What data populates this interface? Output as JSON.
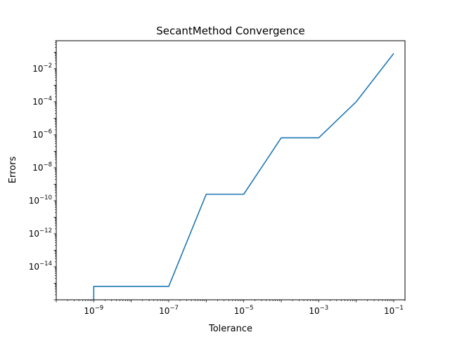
{
  "chart_data": {
    "type": "line",
    "title": "SecantMethod Convergence",
    "xlabel": "Tolerance",
    "ylabel": "Errors",
    "xscale": "log",
    "yscale": "log",
    "xlim": [
      1e-10,
      0.2
    ],
    "ylim": [
      1e-16,
      0.5
    ],
    "grid": false,
    "legend": "none",
    "series": [
      {
        "color": "#1f77b4",
        "x": [
          1e-09,
          1e-09,
          1e-08,
          1e-07,
          1e-06,
          1e-05,
          0.0001,
          0.001,
          0.01,
          0.1
        ],
        "y": [
          1e-16,
          6.5e-16,
          6.5e-16,
          6.5e-16,
          2.5e-10,
          2.5e-10,
          6.5e-07,
          6.5e-07,
          0.0001,
          0.085
        ]
      }
    ],
    "xticks": [
      {
        "value": 1e-09,
        "base": "10",
        "exp": "−9"
      },
      {
        "value": 1e-07,
        "base": "10",
        "exp": "−7"
      },
      {
        "value": 1e-05,
        "base": "10",
        "exp": "−5"
      },
      {
        "value": 0.001,
        "base": "10",
        "exp": "−3"
      },
      {
        "value": 0.1,
        "base": "10",
        "exp": "−1"
      }
    ],
    "yticks": [
      {
        "value": 1e-14,
        "base": "10",
        "exp": "−14"
      },
      {
        "value": 1e-12,
        "base": "10",
        "exp": "−12"
      },
      {
        "value": 1e-10,
        "base": "10",
        "exp": "−10"
      },
      {
        "value": 1e-08,
        "base": "10",
        "exp": "−8"
      },
      {
        "value": 1e-06,
        "base": "10",
        "exp": "−6"
      },
      {
        "value": 0.0001,
        "base": "10",
        "exp": "−4"
      },
      {
        "value": 0.01,
        "base": "10",
        "exp": "−2"
      }
    ]
  }
}
